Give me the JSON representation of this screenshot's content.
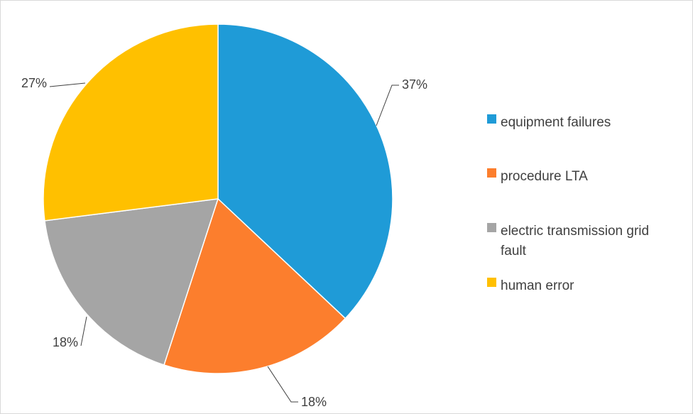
{
  "chart_data": {
    "type": "pie",
    "categories": [
      "equipment failures",
      "procedure LTA",
      "electric transmission grid fault",
      "human error"
    ],
    "values": [
      37,
      18,
      18,
      27
    ],
    "data_labels": [
      "37%",
      "18%",
      "18%",
      "27%"
    ],
    "colors": [
      "#1f9bd7",
      "#fc7e2d",
      "#a5a5a5",
      "#ffc000"
    ],
    "legend_lines": [
      [
        "equipment failures"
      ],
      [
        "procedure LTA"
      ],
      [
        "electric transmission grid",
        "fault"
      ],
      [
        "human error"
      ]
    ],
    "legend_position": "right",
    "start_angle": "12 o'clock",
    "direction": "clockwise"
  }
}
